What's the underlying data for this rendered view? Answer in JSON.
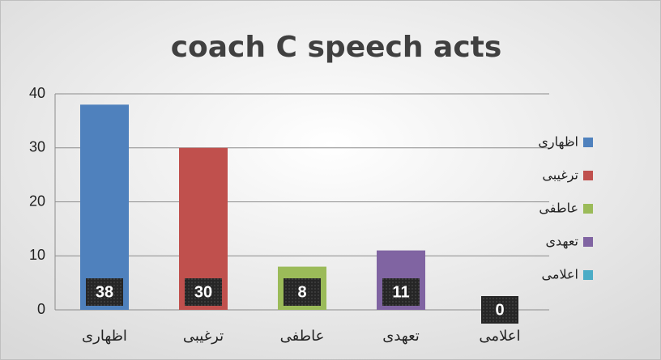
{
  "chart_data": {
    "type": "bar",
    "title": "coach C speech acts",
    "categories": [
      "اظهاری",
      "ترغیبی",
      "عاطفی",
      "تعهدی",
      "اعلامی"
    ],
    "values": [
      38,
      30,
      8,
      11,
      0
    ],
    "colors": [
      "#4f81bd",
      "#c0504d",
      "#9bbb59",
      "#8064a2",
      "#4bacc6"
    ],
    "ylim": [
      0,
      40
    ],
    "yticks": [
      0,
      10,
      20,
      30,
      40
    ],
    "grid": true,
    "legend": "right"
  }
}
